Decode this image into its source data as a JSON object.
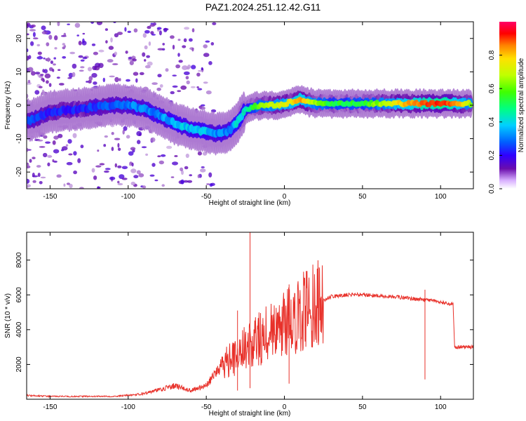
{
  "title": "PAZ1.2024.251.12.42.G11",
  "colors": {
    "snr_line": "#e8312a",
    "colormap": [
      "#ffffff",
      "#6a0dad",
      "#3000ff",
      "#0060ff",
      "#00d0ff",
      "#00ff80",
      "#40ff00",
      "#c0ff00",
      "#ffe000",
      "#ff8000",
      "#ff0000",
      "#ff0066"
    ]
  },
  "chart_data": [
    {
      "type": "heatmap",
      "xlabel": "Height of straight line (km)",
      "ylabel": "Frequency (Hz)",
      "xlim": [
        -165,
        121
      ],
      "ylim": [
        -25,
        25
      ],
      "xticks": [
        -150,
        -100,
        -50,
        0,
        50,
        100
      ],
      "yticks": [
        -20,
        -10,
        0,
        10,
        20
      ],
      "colorbar": {
        "label": "Normalized spectral amplitude",
        "range": [
          0,
          1
        ],
        "ticks": [
          "0.0",
          "0.2",
          "0.4",
          "0.6",
          "0.8"
        ]
      },
      "ridge": {
        "x": [
          -162,
          -150,
          -140,
          -130,
          -120,
          -110,
          -100,
          -90,
          -80,
          -70,
          -60,
          -50,
          -45,
          -40,
          -35,
          -30,
          -25,
          -20,
          -15,
          -10,
          -5,
          0,
          5,
          10,
          15,
          20,
          30,
          50,
          70,
          90,
          100,
          110,
          120
        ],
        "frequency": [
          -4.5,
          -2,
          -1.5,
          -1,
          -0.5,
          0,
          0,
          -1,
          -3,
          -5.5,
          -7,
          -8,
          -8.5,
          -8.5,
          -7.5,
          -5,
          -1.5,
          -0.5,
          0,
          0,
          0,
          0.5,
          1,
          1.8,
          1,
          0.5,
          0.5,
          0.5,
          0.5,
          0.5,
          0.5,
          0.5,
          0.5
        ],
        "amplitude": [
          0.25,
          0.2,
          0.2,
          0.2,
          0.25,
          0.25,
          0.3,
          0.3,
          0.3,
          0.35,
          0.35,
          0.35,
          0.3,
          0.3,
          0.3,
          0.4,
          0.4,
          0.5,
          0.6,
          0.65,
          0.65,
          0.7,
          0.7,
          0.8,
          0.7,
          0.6,
          0.5,
          0.5,
          0.7,
          0.85,
          0.9,
          0.8,
          0.6
        ]
      }
    },
    {
      "type": "line",
      "xlabel": "Height of straight line (km)",
      "ylabel": "SNR (10 * v/v)",
      "xlim": [
        -165,
        121
      ],
      "ylim": [
        0,
        9600
      ],
      "xticks": [
        -150,
        -100,
        -50,
        0,
        50,
        100
      ],
      "yticks": [
        2000,
        4000,
        6000,
        8000
      ],
      "series": [
        {
          "x": [
            -165,
            -150,
            -130,
            -110,
            -100,
            -90,
            -80,
            -70,
            -60,
            -50,
            -45,
            -40,
            -35,
            -30,
            -25,
            -20,
            -15,
            -10,
            -5,
            0,
            5,
            10,
            20,
            30,
            40,
            50,
            60,
            70,
            80,
            90,
            100,
            105,
            108,
            109,
            110,
            115,
            121
          ],
          "y": [
            200,
            150,
            150,
            150,
            200,
            300,
            500,
            700,
            450,
            700,
            1300,
            1800,
            2300,
            2500,
            3000,
            3300,
            3500,
            3800,
            4000,
            4300,
            4600,
            4900,
            5500,
            5900,
            6000,
            6000,
            5950,
            5900,
            5800,
            5700,
            5600,
            5500,
            5450,
            3000,
            3000,
            3000,
            3000
          ]
        }
      ],
      "spikes": [
        {
          "x": -22,
          "y": 9600
        },
        {
          "x": -30,
          "y": 5100
        },
        {
          "x": 3,
          "y": 6600
        },
        {
          "x": 90,
          "y": 6300
        }
      ]
    }
  ]
}
